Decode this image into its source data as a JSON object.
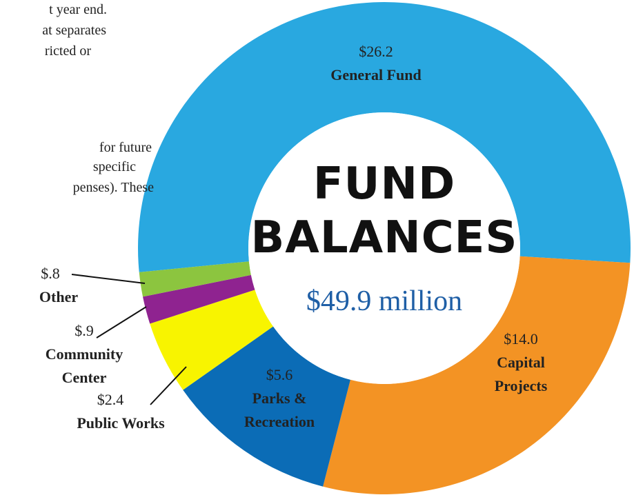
{
  "intro_text": [
    "t year end.",
    "at separates",
    "ricted or",
    "for future",
    "specific",
    "penses). These"
  ],
  "chart_data": {
    "type": "donut",
    "center_title": "FUND\nBALANCES",
    "center_total": "$49.9 million",
    "categories": [
      "General Fund",
      "Capital\nProjects",
      "Parks &\nRecreation",
      "Public Works",
      "Community\nCenter",
      "Other"
    ],
    "values": [
      26.2,
      14.0,
      5.6,
      2.4,
      0.9,
      0.8
    ],
    "value_labels": [
      "$26.2",
      "$14.0",
      "$5.6",
      "$2.4",
      "$.9",
      "$.8"
    ],
    "colors": [
      "#29a8e0",
      "#f39324",
      "#0b6cb6",
      "#f8f400",
      "#8f2390",
      "#8cc53f"
    ]
  }
}
